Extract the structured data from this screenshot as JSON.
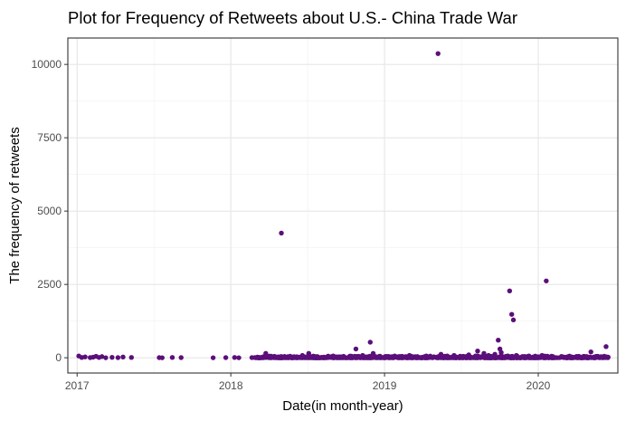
{
  "chart_data": {
    "type": "scatter",
    "title": "Plot for Frequency of Retweets about U.S.- China Trade War",
    "xlabel": "Date(in month-year)",
    "ylabel": "The frequency of retweets",
    "x_ticks": [
      "2017-01-01",
      "2018-01-01",
      "2019-01-01",
      "2020-01-01"
    ],
    "x_tick_labels": [
      "2017",
      "2018",
      "2019",
      "2020"
    ],
    "y_ticks": [
      0,
      2500,
      5000,
      7500,
      10000
    ],
    "y_tick_labels": [
      "0",
      "2500",
      "5000",
      "7500",
      "10000"
    ],
    "xlim": [
      "2016-12-10",
      "2020-07-08"
    ],
    "ylim": [
      -520,
      10900
    ],
    "grid": true,
    "point_color": "#5b0f7a",
    "panel_border": "#333333",
    "grid_color": "#e6e6e6",
    "points": [
      {
        "x": "2017-01-05",
        "y": 60
      },
      {
        "x": "2017-01-12",
        "y": 10
      },
      {
        "x": "2017-01-20",
        "y": 30
      },
      {
        "x": "2017-02-01",
        "y": 5
      },
      {
        "x": "2017-02-08",
        "y": 20
      },
      {
        "x": "2017-02-15",
        "y": 50
      },
      {
        "x": "2017-02-22",
        "y": 10
      },
      {
        "x": "2017-03-01",
        "y": 40
      },
      {
        "x": "2017-03-10",
        "y": 0
      },
      {
        "x": "2017-03-25",
        "y": 15
      },
      {
        "x": "2017-04-08",
        "y": 5
      },
      {
        "x": "2017-04-20",
        "y": 25
      },
      {
        "x": "2017-05-10",
        "y": 10
      },
      {
        "x": "2017-07-15",
        "y": 5
      },
      {
        "x": "2017-07-22",
        "y": 0
      },
      {
        "x": "2017-08-15",
        "y": 10
      },
      {
        "x": "2017-09-05",
        "y": 5
      },
      {
        "x": "2017-11-20",
        "y": 0
      },
      {
        "x": "2017-12-20",
        "y": 5
      },
      {
        "x": "2018-01-10",
        "y": 10
      },
      {
        "x": "2018-01-20",
        "y": 0
      },
      {
        "x": "2018-02-20",
        "y": 5
      },
      {
        "x": "2018-03-05",
        "y": 20
      },
      {
        "x": "2018-03-15",
        "y": 10
      },
      {
        "x": "2018-03-25",
        "y": 150
      },
      {
        "x": "2018-04-05",
        "y": 40
      },
      {
        "x": "2018-04-20",
        "y": 20
      },
      {
        "x": "2018-05-05",
        "y": 10
      },
      {
        "x": "2018-05-01",
        "y": 4250
      },
      {
        "x": "2018-05-20",
        "y": 30
      },
      {
        "x": "2018-06-10",
        "y": 20
      },
      {
        "x": "2018-06-20",
        "y": 80
      },
      {
        "x": "2018-07-05",
        "y": 150
      },
      {
        "x": "2018-07-25",
        "y": 40
      },
      {
        "x": "2018-08-10",
        "y": 20
      },
      {
        "x": "2018-09-01",
        "y": 60
      },
      {
        "x": "2018-09-20",
        "y": 30
      },
      {
        "x": "2018-10-10",
        "y": 50
      },
      {
        "x": "2018-10-25",
        "y": 300
      },
      {
        "x": "2018-11-10",
        "y": 80
      },
      {
        "x": "2018-11-28",
        "y": 530
      },
      {
        "x": "2018-12-05",
        "y": 150
      },
      {
        "x": "2018-12-20",
        "y": 40
      },
      {
        "x": "2019-01-10",
        "y": 20
      },
      {
        "x": "2019-01-25",
        "y": 60
      },
      {
        "x": "2019-02-10",
        "y": 30
      },
      {
        "x": "2019-03-01",
        "y": 80
      },
      {
        "x": "2019-03-20",
        "y": 40
      },
      {
        "x": "2019-04-10",
        "y": 60
      },
      {
        "x": "2019-04-28",
        "y": 20
      },
      {
        "x": "2019-05-08",
        "y": 10370
      },
      {
        "x": "2019-05-15",
        "y": 120
      },
      {
        "x": "2019-05-30",
        "y": 60
      },
      {
        "x": "2019-06-15",
        "y": 80
      },
      {
        "x": "2019-07-05",
        "y": 40
      },
      {
        "x": "2019-07-20",
        "y": 100
      },
      {
        "x": "2019-08-05",
        "y": 60
      },
      {
        "x": "2019-08-10",
        "y": 230
      },
      {
        "x": "2019-08-25",
        "y": 150
      },
      {
        "x": "2019-09-05",
        "y": 80
      },
      {
        "x": "2019-09-20",
        "y": 120
      },
      {
        "x": "2019-09-28",
        "y": 600
      },
      {
        "x": "2019-10-02",
        "y": 300
      },
      {
        "x": "2019-10-05",
        "y": 180
      },
      {
        "x": "2019-10-20",
        "y": 60
      },
      {
        "x": "2019-10-25",
        "y": 2280
      },
      {
        "x": "2019-10-30",
        "y": 1480
      },
      {
        "x": "2019-11-03",
        "y": 1290
      },
      {
        "x": "2019-11-10",
        "y": 80
      },
      {
        "x": "2019-11-25",
        "y": 40
      },
      {
        "x": "2019-12-10",
        "y": 60
      },
      {
        "x": "2019-12-28",
        "y": 30
      },
      {
        "x": "2020-01-10",
        "y": 80
      },
      {
        "x": "2020-01-20",
        "y": 2620
      },
      {
        "x": "2020-02-05",
        "y": 40
      },
      {
        "x": "2020-02-25",
        "y": 20
      },
      {
        "x": "2020-03-15",
        "y": 30
      },
      {
        "x": "2020-04-05",
        "y": 20
      },
      {
        "x": "2020-04-25",
        "y": 40
      },
      {
        "x": "2020-05-05",
        "y": 200
      },
      {
        "x": "2020-05-20",
        "y": 30
      },
      {
        "x": "2020-06-10",
        "y": 380
      },
      {
        "x": "2020-06-15",
        "y": 20
      }
    ],
    "dense_bands": [
      {
        "start": "2018-02-25",
        "end": "2020-06-15",
        "count": 900,
        "max_y": 60
      }
    ]
  }
}
